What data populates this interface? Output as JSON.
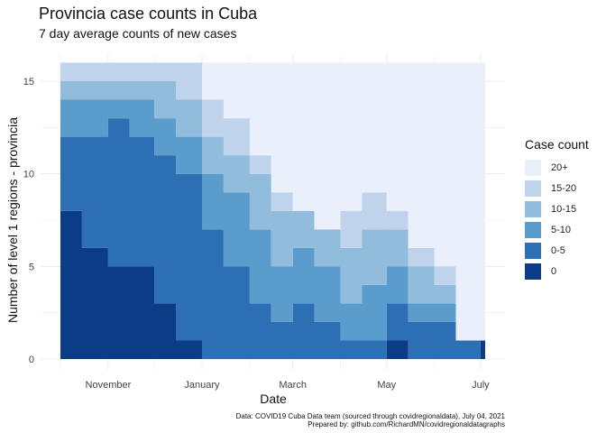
{
  "title": "Provincia case counts in Cuba",
  "subtitle": "7 day average counts of new cases",
  "caption": {
    "line1": "Data: COVID19 Cuba Data team (sourced through covidregionaldata), July 04, 2021",
    "line2": "Prepared by: github.com/RichardMN/covidregionaldatagraphs"
  },
  "chart_data": {
    "type": "area",
    "stacked": true,
    "xlabel": "Date",
    "ylabel": "Number of level 1 regions - provincia",
    "x_ticks": [
      "November",
      "January",
      "March",
      "May",
      "July"
    ],
    "x_tick_dates": [
      "2020-11-01",
      "2021-01-01",
      "2021-03-01",
      "2021-05-01",
      "2021-07-01"
    ],
    "y_ticks": [
      0,
      5,
      10,
      15
    ],
    "ylim": [
      0,
      16
    ],
    "xlim": [
      "2020-10-01",
      "2021-07-04"
    ],
    "grid": true,
    "legend_placement": "right",
    "legend_title": "Case count",
    "colors": {
      "20+": "#e9f0fc",
      "15-20": "#c0d3ec",
      "10-15": "#92bcdb",
      "5-10": "#5a9ccc",
      "0-5": "#2d6fb4",
      "0": "#0d3c86"
    },
    "x": [
      "2020-10-01",
      "2020-10-15",
      "2020-11-01",
      "2020-11-15",
      "2020-12-01",
      "2020-12-15",
      "2021-01-01",
      "2021-01-15",
      "2021-02-01",
      "2021-02-15",
      "2021-03-01",
      "2021-03-15",
      "2021-04-01",
      "2021-04-15",
      "2021-05-01",
      "2021-05-15",
      "2021-06-01",
      "2021-06-15",
      "2021-07-01"
    ],
    "series": [
      {
        "name": "0",
        "values": [
          8,
          6,
          5,
          5,
          3,
          1,
          0,
          0,
          0,
          0,
          0,
          0,
          0,
          0,
          1,
          0,
          0,
          0,
          1
        ]
      },
      {
        "name": "0-5",
        "values": [
          4,
          6,
          8,
          7,
          8,
          9,
          7,
          5,
          3,
          2,
          3,
          2,
          1,
          1,
          2,
          2,
          2,
          1,
          0
        ]
      },
      {
        "name": "5-10",
        "values": [
          2,
          2,
          1,
          2,
          2,
          2,
          3,
          4,
          4,
          3,
          3,
          3,
          2,
          3,
          2,
          1,
          1,
          0,
          0
        ]
      },
      {
        "name": "10-15",
        "values": [
          1,
          1,
          1,
          1,
          2,
          2,
          2,
          2,
          3,
          3,
          2,
          2,
          3,
          3,
          2,
          2,
          1,
          0,
          0
        ]
      },
      {
        "name": "15-20",
        "values": [
          1,
          1,
          1,
          1,
          1,
          2,
          2,
          2,
          1,
          1,
          0,
          0,
          2,
          2,
          1,
          1,
          1,
          0,
          0
        ]
      },
      {
        "name": "20+",
        "values": [
          0,
          0,
          0,
          0,
          0,
          0,
          2,
          3,
          5,
          7,
          8,
          9,
          8,
          7,
          8,
          10,
          11,
          15,
          15
        ]
      }
    ]
  }
}
